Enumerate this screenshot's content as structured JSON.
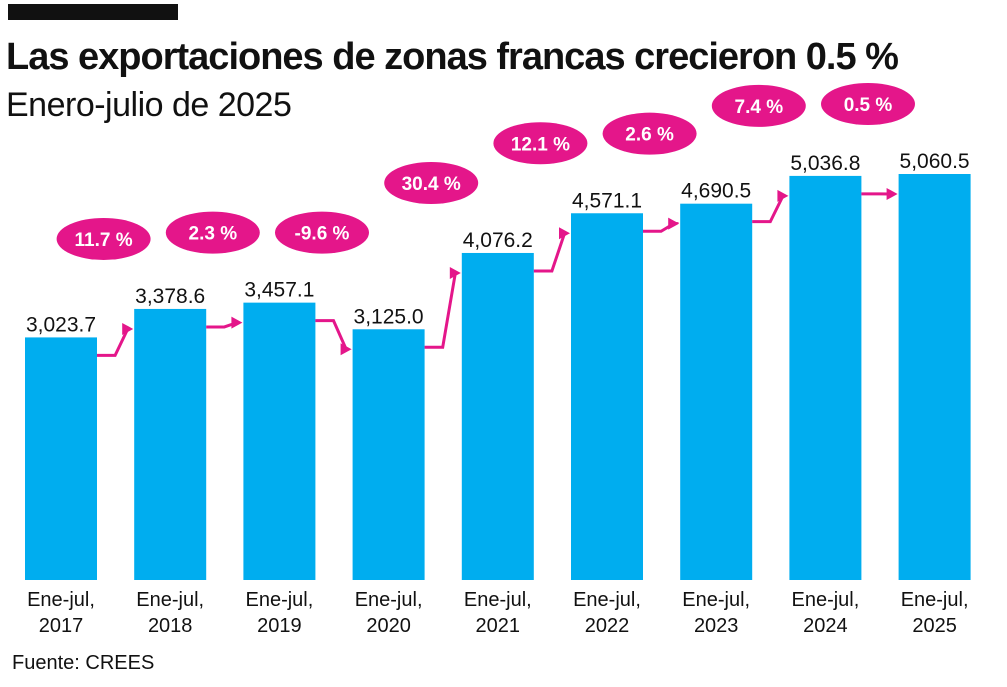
{
  "header": {
    "title": "Las exportaciones de zonas francas crecieron 0.5 %",
    "subtitle": "Enero-julio de 2025"
  },
  "footer": {
    "source": "Fuente:  CREES"
  },
  "colors": {
    "bar": "#00adef",
    "accent": "#e4168a",
    "text": "#111111"
  },
  "chart_data": {
    "type": "bar",
    "title": "Las exportaciones de zonas francas crecieron 0.5 %",
    "subtitle": "Enero-julio de 2025",
    "xlabel": "",
    "ylabel": "",
    "grid": false,
    "categories": [
      [
        "Ene-jul,",
        "2017"
      ],
      [
        "Ene-jul,",
        "2018"
      ],
      [
        "Ene-jul,",
        "2019"
      ],
      [
        "Ene-jul,",
        "2020"
      ],
      [
        "Ene-jul,",
        "2021"
      ],
      [
        "Ene-jul,",
        "2022"
      ],
      [
        "Ene-jul,",
        "2023"
      ],
      [
        "Ene-jul,",
        "2024"
      ],
      [
        "Ene-jul,",
        "2025"
      ]
    ],
    "values": [
      3023.7,
      3378.6,
      3457.1,
      3125.0,
      4076.2,
      4571.1,
      4690.5,
      5036.8,
      5060.5
    ],
    "value_labels": [
      "3,023.7",
      "3,378.6",
      "3,457.1",
      "3,125.0",
      "4,076.2",
      "4,571.1",
      "4,690.5",
      "5,036.8",
      "5,060.5"
    ],
    "growth_labels": [
      "11.7 %",
      "2.3 %",
      "-9.6 %",
      "30.4 %",
      "12.1 %",
      "2.6 %",
      "7.4 %",
      "0.5 %"
    ],
    "ylim": [
      0,
      5060.5
    ]
  }
}
